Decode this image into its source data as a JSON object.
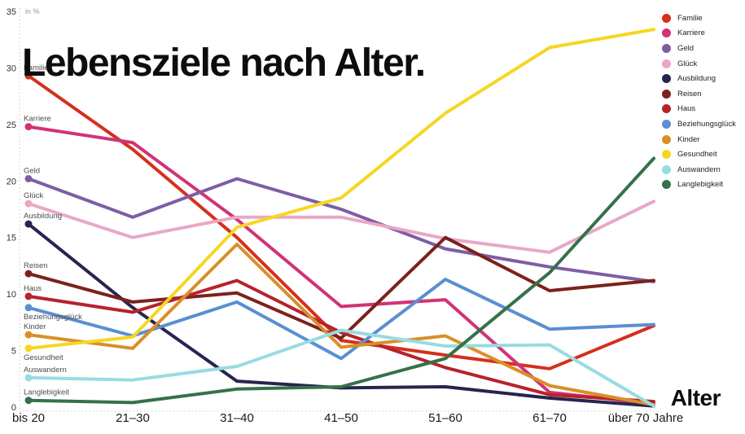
{
  "chart_data": {
    "type": "line",
    "title": "Lebensziele nach Alter.",
    "unit_label": "in %",
    "xlabel": "Alter",
    "ylim": [
      0,
      35
    ],
    "yticks": [
      0,
      5,
      10,
      15,
      20,
      25,
      30,
      35
    ],
    "grid": false,
    "legend_position": "top-right",
    "categories": [
      "bis 20",
      "21–30",
      "31–40",
      "41–50",
      "51–60",
      "61–70",
      "über 70 Jahre"
    ],
    "series": [
      {
        "name": "Familie",
        "color": "#d62f1d",
        "values": [
          29.3,
          22.8,
          15.0,
          5.9,
          4.6,
          3.4,
          7.2
        ]
      },
      {
        "name": "Karriere",
        "color": "#d23277",
        "values": [
          24.8,
          23.4,
          16.6,
          8.9,
          9.5,
          1.3,
          0.3
        ]
      },
      {
        "name": "Geld",
        "color": "#7f5da5",
        "values": [
          20.2,
          16.8,
          20.2,
          17.5,
          14.0,
          12.4,
          11.1
        ]
      },
      {
        "name": "Glück",
        "color": "#e9a7c8",
        "values": [
          18.0,
          15.0,
          16.8,
          16.8,
          14.9,
          13.7,
          18.2
        ]
      },
      {
        "name": "Ausbildung",
        "color": "#262550",
        "values": [
          16.2,
          8.8,
          2.3,
          1.7,
          1.8,
          0.8,
          0.1
        ]
      },
      {
        "name": "Reisen",
        "color": "#7c211b",
        "values": [
          11.8,
          9.3,
          10.1,
          6.1,
          15.0,
          10.3,
          11.2
        ]
      },
      {
        "name": "Haus",
        "color": "#b7232b",
        "values": [
          9.8,
          8.4,
          11.2,
          6.6,
          3.5,
          1.1,
          0.5
        ]
      },
      {
        "name": "Beziehungsglück",
        "color": "#5a8fd1",
        "values": [
          8.8,
          6.3,
          9.3,
          4.3,
          11.3,
          6.9,
          7.3
        ],
        "label_below": true
      },
      {
        "name": "Kinder",
        "color": "#d98f27",
        "values": [
          6.4,
          5.2,
          14.4,
          5.3,
          6.3,
          1.9,
          0.2
        ]
      },
      {
        "name": "Gesundheit",
        "color": "#f6d623",
        "values": [
          5.2,
          6.2,
          15.9,
          18.5,
          26.0,
          31.8,
          33.4
        ],
        "label_below": true
      },
      {
        "name": "Auswandern",
        "color": "#97dce0",
        "values": [
          2.6,
          2.4,
          3.6,
          6.8,
          5.4,
          5.5,
          0.1
        ]
      },
      {
        "name": "Langlebigkeit",
        "color": "#357149",
        "values": [
          0.6,
          0.4,
          1.6,
          1.8,
          4.3,
          11.9,
          22.0
        ]
      }
    ]
  }
}
